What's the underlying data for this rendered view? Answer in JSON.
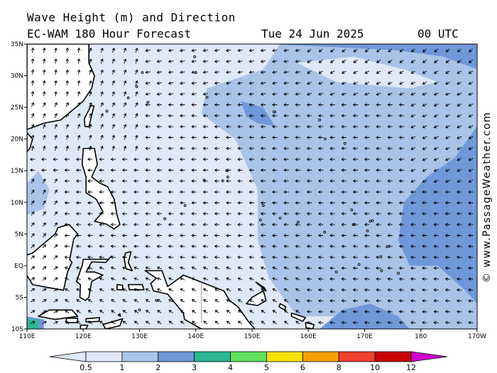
{
  "header": {
    "title": "Wave Height (m) and Direction",
    "model": "EC-WAM 180 Hour Forecast",
    "date": "Tue 24 Jun 2025",
    "time": "00 UTC"
  },
  "credit": "© www.PassageWeather.com",
  "map_axes": {
    "lon_labels": [
      "110E",
      "120E",
      "130E",
      "140E",
      "150E",
      "160E",
      "170E",
      "180",
      "170W"
    ],
    "lat_labels": [
      "35N",
      "30N",
      "25N",
      "20N",
      "15N",
      "10N",
      "5N",
      "EQ",
      "5S",
      "10S"
    ],
    "lon_range": [
      110,
      190
    ],
    "lat_range": [
      -10,
      35
    ]
  },
  "legend": {
    "labels": [
      "0.5",
      "1",
      "2",
      "3",
      "4",
      "5",
      "6",
      "8",
      "10",
      "12"
    ],
    "colors": [
      "#dfe9f8",
      "#a9c4e8",
      "#6f98d8",
      "#2bb892",
      "#5ee05e",
      "#f5e300",
      "#f5a000",
      "#f04030",
      "#c80000",
      "#d000d0"
    ]
  },
  "colors": {
    "land": "#ffffff",
    "low_wave": "#dfe9f8",
    "mid_wave": "#a9c4e8",
    "high_wave": "#6f98d8",
    "arrow": "#000000"
  }
}
